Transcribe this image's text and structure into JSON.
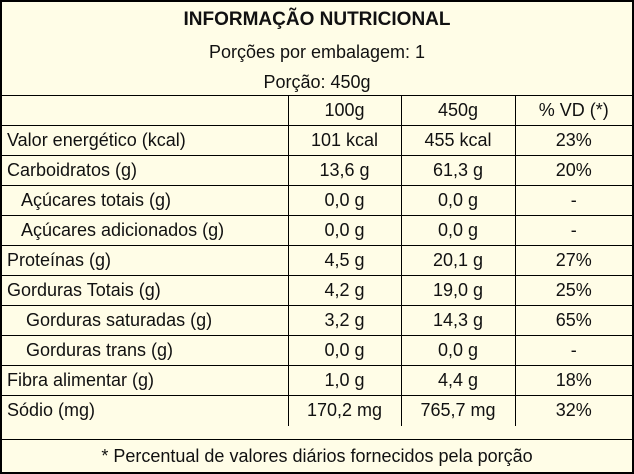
{
  "header": {
    "title": "INFORMAÇÃO NUTRICIONAL",
    "servings_per_package": "Porções por embalagem: 1",
    "serving_size": "Porção: 450g"
  },
  "columns": [
    "",
    "100g",
    "450g",
    "% VD (*)"
  ],
  "rows": [
    {
      "nutrient": "Valor energético (kcal)",
      "per_100g": "101 kcal",
      "per_portion": "455 kcal",
      "dv": "23%"
    },
    {
      "nutrient": "Carboidratos (g)",
      "per_100g": "13,6 g",
      "per_portion": "61,3 g",
      "dv": "20%"
    },
    {
      "nutrient": "Açúcares totais (g)",
      "per_100g": "0,0 g",
      "per_portion": "0,0 g",
      "dv": "-"
    },
    {
      "nutrient": "Açúcares adicionados (g)",
      "per_100g": "0,0 g",
      "per_portion": "0,0 g",
      "dv": "-"
    },
    {
      "nutrient": "Proteínas (g)",
      "per_100g": "4,5 g",
      "per_portion": "20,1 g",
      "dv": "27%"
    },
    {
      "nutrient": "Gorduras Totais (g)",
      "per_100g": "4,2 g",
      "per_portion": "19,0 g",
      "dv": "25%"
    },
    {
      "nutrient": "Gorduras saturadas (g)",
      "per_100g": "3,2 g",
      "per_portion": "14,3 g",
      "dv": "65%"
    },
    {
      "nutrient": "Gorduras trans (g)",
      "per_100g": "0,0 g",
      "per_portion": "0,0 g",
      "dv": "-"
    },
    {
      "nutrient": "Fibra alimentar (g)",
      "per_100g": "1,0 g",
      "per_portion": "4,4 g",
      "dv": "18%"
    },
    {
      "nutrient": "Sódio (mg)",
      "per_100g": "170,2 mg",
      "per_portion": "765,7 mg",
      "dv": "32%"
    }
  ],
  "footnote": "* Percentual de valores diários fornecidos pela porção",
  "colors": {
    "background": "#fffde7",
    "border": "#000000",
    "text": "#111111"
  }
}
